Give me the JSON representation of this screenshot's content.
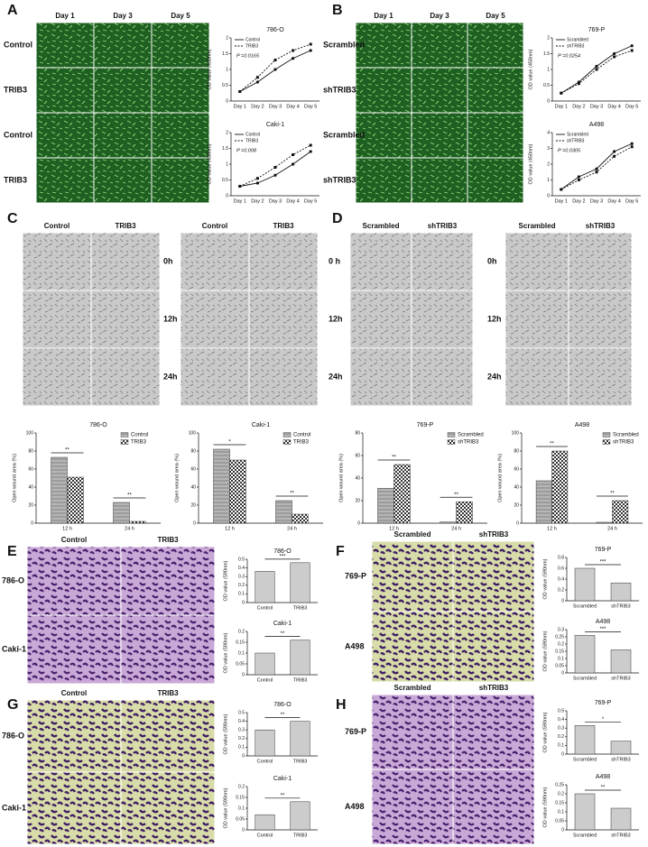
{
  "panels": [
    "A",
    "B",
    "C",
    "D",
    "E",
    "F",
    "G",
    "H"
  ],
  "image_grids": [
    {
      "columns": [
        "Day 1",
        "Day 3",
        "Day 5"
      ],
      "rows": [
        "Control",
        "TRIB3",
        "Control",
        "TRIB3"
      ]
    },
    {
      "columns": [
        "Day 1",
        "Day 3",
        "Day 5"
      ],
      "rows": [
        "Scrambled",
        "shTRIB3",
        "Scrambled",
        "shTRIB3"
      ]
    },
    {
      "columns": [
        "Control",
        "TRIB3"
      ],
      "rows": []
    },
    {
      "columns": [
        "Control",
        "TRIB3"
      ],
      "rows": [
        "0h",
        "12h",
        "24h"
      ]
    },
    {
      "columns": [
        "Scrambled",
        "shTRIB3"
      ],
      "rows": [
        "0 h",
        "12h",
        "24h"
      ]
    },
    {
      "columns": [
        "Scrambled",
        "shTRIB3"
      ],
      "rows": [
        "0h",
        "12h",
        "24h"
      ]
    },
    {
      "columns": [
        "Control",
        "TRIB3"
      ],
      "rows": [
        "786-O",
        "Caki-1"
      ]
    },
    {
      "columns": [
        "Scrambled",
        "shTRIB3"
      ],
      "rows": [
        "769-P",
        "A498"
      ]
    },
    {
      "columns": [
        "Control",
        "TRIB3"
      ],
      "rows": [
        "786-O",
        "Caki-1"
      ]
    },
    {
      "columns": [
        "Scrambled",
        "shTRIB3"
      ],
      "rows": [
        "769-P",
        "A498"
      ]
    }
  ],
  "chart_data": [
    {
      "type": "line",
      "title": "786-O",
      "ylabel": "OD value (450nm)",
      "annotation": "P =0.0165",
      "categories": [
        "Day 1",
        "Day 2",
        "Day 3",
        "Day 4",
        "Day 5"
      ],
      "ylim": [
        0,
        2
      ],
      "yticks": [
        0,
        0.5,
        1,
        1.5,
        2
      ],
      "series": [
        {
          "name": "Control",
          "color": "#111111",
          "dashed": false,
          "values": [
            0.3,
            0.6,
            1.0,
            1.35,
            1.6
          ]
        },
        {
          "name": "TRIB3",
          "color": "#111111",
          "dashed": true,
          "values": [
            0.3,
            0.75,
            1.3,
            1.6,
            1.8
          ]
        }
      ]
    },
    {
      "type": "line",
      "title": "Caki-1",
      "ylabel": "OD value (450nm)",
      "annotation": "P =0.008",
      "categories": [
        "Day 1",
        "Day 2",
        "Day 3",
        "Day 4",
        "Day 5"
      ],
      "ylim": [
        0,
        2
      ],
      "yticks": [
        0,
        0.5,
        1,
        1.5,
        2
      ],
      "series": [
        {
          "name": "Control",
          "color": "#111111",
          "dashed": false,
          "values": [
            0.3,
            0.4,
            0.65,
            1.0,
            1.4
          ]
        },
        {
          "name": "TRIB3",
          "color": "#111111",
          "dashed": true,
          "values": [
            0.3,
            0.55,
            0.9,
            1.3,
            1.6
          ]
        }
      ]
    },
    {
      "type": "line",
      "title": "769-P",
      "ylabel": "OD value (450nm)",
      "annotation": "P =0.0254",
      "categories": [
        "Day 1",
        "Day 2",
        "Day 3",
        "Day 4",
        "Day 5"
      ],
      "ylim": [
        0,
        2
      ],
      "yticks": [
        0,
        0.5,
        1,
        1.5,
        2
      ],
      "series": [
        {
          "name": "Scrambled",
          "color": "#111111",
          "dashed": false,
          "values": [
            0.25,
            0.6,
            1.1,
            1.5,
            1.75
          ]
        },
        {
          "name": "shTRIB3",
          "color": "#111111",
          "dashed": true,
          "values": [
            0.25,
            0.55,
            1.0,
            1.4,
            1.6
          ]
        }
      ]
    },
    {
      "type": "line",
      "title": "A498",
      "ylabel": "OD value (450nm)",
      "annotation": "P =0.0305",
      "categories": [
        "Day 1",
        "Day 2",
        "Day 3",
        "Day 4",
        "Day 5"
      ],
      "ylim": [
        0,
        4
      ],
      "yticks": [
        0,
        1,
        2,
        3,
        4
      ],
      "series": [
        {
          "name": "Scrambled",
          "color": "#111111",
          "dashed": false,
          "values": [
            0.4,
            1.2,
            1.7,
            2.8,
            3.3
          ]
        },
        {
          "name": "shTRIB3",
          "color": "#111111",
          "dashed": true,
          "values": [
            0.4,
            1.0,
            1.5,
            2.5,
            3.1
          ]
        }
      ]
    },
    {
      "type": "bar",
      "title": "786-O",
      "ylabel": "Open wound area (%)",
      "categories": [
        "12 h",
        "24 h"
      ],
      "sig": [
        "**",
        "**"
      ],
      "ylim": [
        0,
        100
      ],
      "yticks": [
        0,
        20,
        40,
        60,
        80,
        100
      ],
      "series": [
        {
          "name": "Control",
          "color": "#999999",
          "pattern": "stripes",
          "values": [
            73,
            23
          ]
        },
        {
          "name": "TRIB3",
          "color": "#ffffff",
          "pattern": "checks",
          "values": [
            51,
            2
          ]
        }
      ]
    },
    {
      "type": "bar",
      "title": "Caki-1",
      "ylabel": "Open wound area (%)",
      "categories": [
        "12 h",
        "24 h"
      ],
      "sig": [
        "*",
        "**"
      ],
      "ylim": [
        0,
        100
      ],
      "yticks": [
        0,
        20,
        40,
        60,
        80,
        100
      ],
      "series": [
        {
          "name": "Control",
          "color": "#999999",
          "pattern": "stripes",
          "values": [
            82,
            25
          ]
        },
        {
          "name": "TRIB3",
          "color": "#ffffff",
          "pattern": "checks",
          "values": [
            70,
            10
          ]
        }
      ]
    },
    {
      "type": "bar",
      "title": "769-P",
      "ylabel": "Open wound area (%)",
      "categories": [
        "12 h",
        "24 h"
      ],
      "sig": [
        "**",
        "**"
      ],
      "ylim": [
        0,
        80
      ],
      "yticks": [
        0,
        20,
        40,
        60,
        80
      ],
      "series": [
        {
          "name": "Scrambled",
          "color": "#999999",
          "pattern": "stripes",
          "values": [
            31,
            1
          ]
        },
        {
          "name": "shTRIB3",
          "color": "#ffffff",
          "pattern": "checks",
          "values": [
            52,
            19
          ]
        }
      ]
    },
    {
      "type": "bar",
      "title": "A498",
      "ylabel": "Open wound area (%)",
      "categories": [
        "12 h",
        "24 h"
      ],
      "sig": [
        "**",
        "**"
      ],
      "ylim": [
        0,
        100
      ],
      "yticks": [
        0,
        20,
        40,
        60,
        80,
        100
      ],
      "series": [
        {
          "name": "Scrambled",
          "color": "#999999",
          "pattern": "stripes",
          "values": [
            47,
            1
          ]
        },
        {
          "name": "shTRIB3",
          "color": "#ffffff",
          "pattern": "checks",
          "values": [
            80,
            25
          ]
        }
      ]
    },
    {
      "type": "bar",
      "title": "786-O",
      "ylabel": "OD value (590nm)",
      "categories": [
        "Control",
        "TRIB3"
      ],
      "values": [
        0.36,
        0.46
      ],
      "color": "#cccccc",
      "sig": "***",
      "ylim": [
        0,
        0.5
      ],
      "yticks": [
        0,
        0.1,
        0.2,
        0.3,
        0.4,
        0.5
      ]
    },
    {
      "type": "bar",
      "title": "Caki-1",
      "ylabel": "OD value (590nm)",
      "categories": [
        "Control",
        "TRIB3"
      ],
      "values": [
        0.1,
        0.16
      ],
      "color": "#cccccc",
      "sig": "**",
      "ylim": [
        0,
        0.2
      ],
      "yticks": [
        0,
        0.05,
        0.1,
        0.15,
        0.2
      ]
    },
    {
      "type": "bar",
      "title": "769-P",
      "ylabel": "OD value (590nm)",
      "categories": [
        "Scrambled",
        "shTRIB3"
      ],
      "values": [
        0.6,
        0.33
      ],
      "color": "#cccccc",
      "sig": "***",
      "ylim": [
        0,
        0.8
      ],
      "yticks": [
        0,
        0.2,
        0.4,
        0.6,
        0.8
      ]
    },
    {
      "type": "bar",
      "title": "A498",
      "ylabel": "OD value (590nm)",
      "categories": [
        "Scrambled",
        "shTRIB3"
      ],
      "values": [
        0.26,
        0.16
      ],
      "color": "#cccccc",
      "sig": "***",
      "ylim": [
        0,
        0.3
      ],
      "yticks": [
        0,
        0.05,
        0.1,
        0.15,
        0.2,
        0.25,
        0.3
      ]
    },
    {
      "type": "bar",
      "title": "786-O",
      "ylabel": "OD value (590nm)",
      "categories": [
        "Control",
        "TRIB3"
      ],
      "values": [
        0.3,
        0.4
      ],
      "color": "#cccccc",
      "sig": "**",
      "ylim": [
        0,
        0.5
      ],
      "yticks": [
        0,
        0.1,
        0.2,
        0.3,
        0.4,
        0.5
      ]
    },
    {
      "type": "bar",
      "title": "Caki-1",
      "ylabel": "OD value (590nm)",
      "categories": [
        "Control",
        "TRIB3"
      ],
      "values": [
        0.07,
        0.13
      ],
      "color": "#cccccc",
      "sig": "**",
      "ylim": [
        0,
        0.2
      ],
      "yticks": [
        0,
        0.05,
        0.1,
        0.15,
        0.2
      ]
    },
    {
      "type": "bar",
      "title": "769-P",
      "ylabel": "OD value (590nm)",
      "categories": [
        "Scrambled",
        "shTRIB3"
      ],
      "values": [
        0.33,
        0.15
      ],
      "color": "#cccccc",
      "sig": "*",
      "ylim": [
        0,
        0.5
      ],
      "yticks": [
        0,
        0.1,
        0.2,
        0.3,
        0.4,
        0.5
      ]
    },
    {
      "type": "bar",
      "title": "A498",
      "ylabel": "OD value (590nm)",
      "categories": [
        "Scrambled",
        "shTRIB3"
      ],
      "values": [
        0.2,
        0.12
      ],
      "color": "#cccccc",
      "sig": "**",
      "ylim": [
        0,
        0.25
      ],
      "yticks": [
        0,
        0.05,
        0.1,
        0.15,
        0.2,
        0.25
      ]
    }
  ]
}
